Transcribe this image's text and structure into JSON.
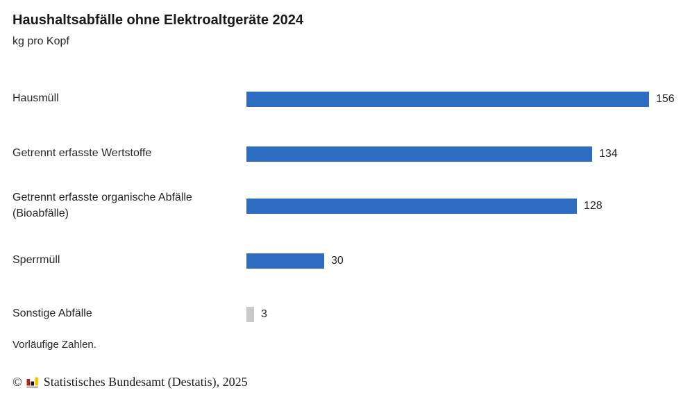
{
  "chart_data": {
    "type": "bar",
    "orientation": "horizontal",
    "title": "Haushaltsabfälle ohne Elektroaltgeräte 2024",
    "subtitle": "kg pro Kopf",
    "categories": [
      "Hausmüll",
      "Getrennt erfasste Wertstoffe",
      "Getrennt erfasste organische Abfälle (Bioabfälle)",
      "Sperrmüll",
      "Sonstige Abfälle"
    ],
    "values": [
      156,
      134,
      128,
      30,
      3
    ],
    "bar_colors": [
      "#2c6dc1",
      "#2c6dc1",
      "#2c6dc1",
      "#2c6dc1",
      "#c9c9c9"
    ],
    "data_labels": [
      "156",
      "134",
      "128",
      "30",
      "3"
    ],
    "xlabel": "",
    "ylabel": "",
    "xmax": 156,
    "grid": false,
    "legend": false
  },
  "footnote": "Vorläufige Zahlen.",
  "footer": {
    "copyright_symbol": "©",
    "source": "Statistisches Bundesamt (Destatis), 2025",
    "logo_icon": "destatis-bar-chart-logo",
    "logo_colors": {
      "red": "#b2251c",
      "black": "#161616",
      "yellow": "#f5c400",
      "base": "#a8a8a8"
    }
  },
  "colors": {
    "bar_blue": "#2c6dc1",
    "bar_gray": "#c9c9c9",
    "text": "#262626"
  }
}
